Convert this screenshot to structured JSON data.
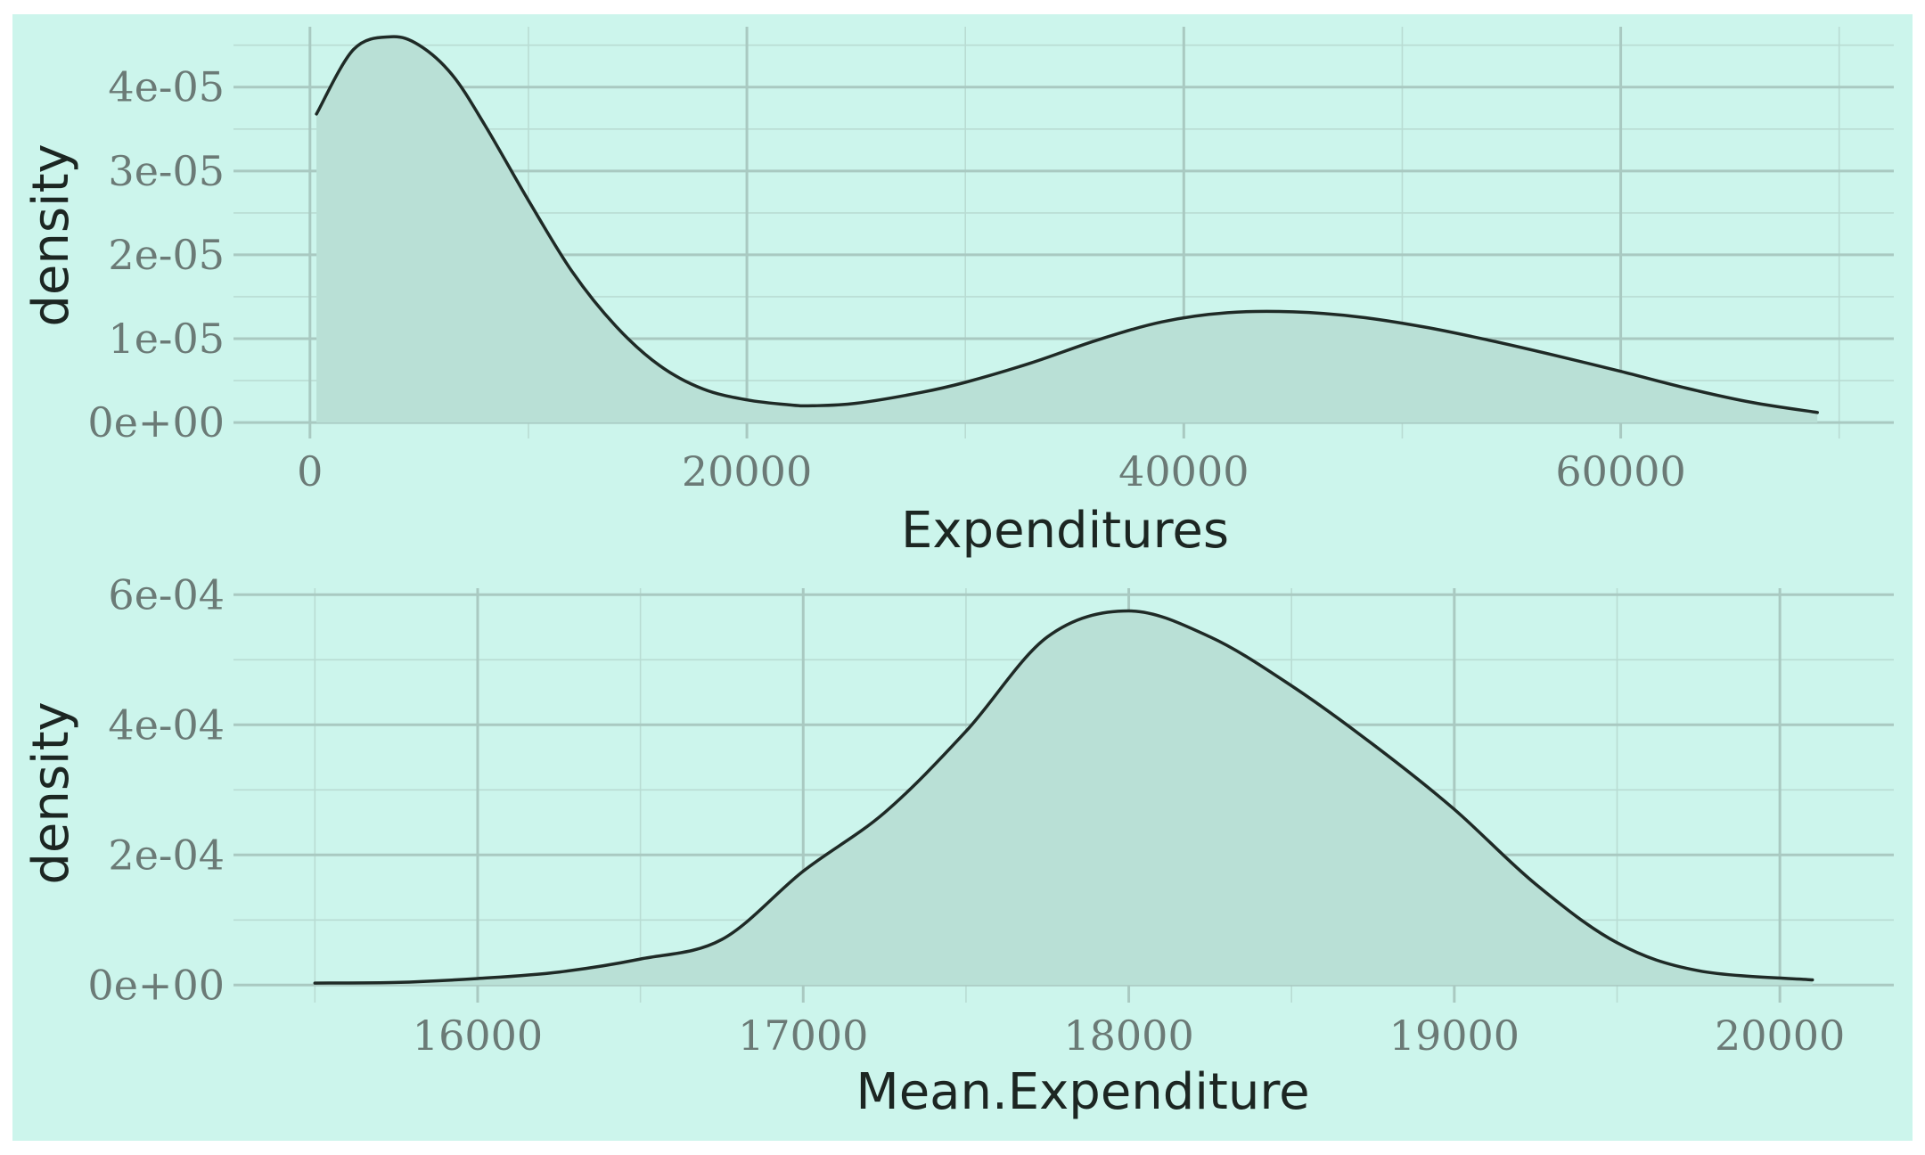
{
  "colors": {
    "panel_background": "#ccf5ec",
    "outer_background": "#ffffff",
    "fill": "#b9e0d6",
    "line": "#1f2a26"
  },
  "chart_data": [
    {
      "type": "area",
      "kind": "density",
      "xlabel": "Expenditures",
      "ylabel": "density",
      "xlim": [
        -3500,
        72500
      ],
      "ylim": [
        -1.9e-06,
        4.72e-05
      ],
      "x_ticks": [
        0,
        20000,
        40000,
        60000
      ],
      "x_tick_labels": [
        "0",
        "20000",
        "40000",
        "60000"
      ],
      "y_ticks": [
        0,
        1e-05,
        2e-05,
        3e-05,
        4e-05
      ],
      "y_tick_labels": [
        "0e+00",
        "1e-05",
        "2e-05",
        "3e-05",
        "4e-05"
      ],
      "grid": true,
      "series": [
        {
          "x": [
            300,
            2000,
            3700,
            5000,
            6500,
            8000,
            10000,
            12000,
            14000,
            16000,
            18000,
            20000,
            22000,
            23000,
            25000,
            28000,
            30000,
            33000,
            36000,
            39000,
            42000,
            45000,
            48000,
            51000,
            54000,
            57000,
            60000,
            63000,
            66000,
            69000
          ],
          "y": [
            3.68e-05,
            4.45e-05,
            4.6e-05,
            4.5e-05,
            4.15e-05,
            3.55e-05,
            2.65e-05,
            1.8e-05,
            1.15e-05,
            6.8e-06,
            4e-06,
            2.7e-06,
            2.1e-06,
            2e-06,
            2.3e-06,
            3.6e-06,
            4.8e-06,
            7.1e-06,
            9.8e-06,
            1.2e-05,
            1.31e-05,
            1.32e-05,
            1.26e-05,
            1.14e-05,
            9.8e-06,
            8e-06,
            6.1e-06,
            4.1e-06,
            2.4e-06,
            1.2e-06
          ]
        }
      ]
    },
    {
      "type": "area",
      "kind": "density",
      "xlabel": "Mean.Expenditure",
      "ylabel": "density",
      "xlim": [
        15250,
        20350
      ],
      "ylim": [
        -2.7e-05,
        0.00061
      ],
      "x_ticks": [
        16000,
        17000,
        18000,
        19000,
        20000
      ],
      "x_tick_labels": [
        "16000",
        "17000",
        "18000",
        "19000",
        "20000"
      ],
      "y_ticks": [
        0,
        0.0002,
        0.0004,
        0.0006
      ],
      "y_tick_labels": [
        "0e+00",
        "2e-04",
        "4e-04",
        "6e-04"
      ],
      "grid": true,
      "series": [
        {
          "x": [
            15500,
            15750,
            16000,
            16250,
            16500,
            16750,
            17000,
            17250,
            17500,
            17750,
            18000,
            18250,
            18500,
            18750,
            19000,
            19250,
            19500,
            19750,
            20100
          ],
          "y": [
            3e-06,
            4e-06,
            1e-05,
            2e-05,
            4e-05,
            7e-05,
            0.000175,
            0.000265,
            0.00039,
            0.000535,
            0.000575,
            0.000535,
            0.00046,
            0.00037,
            0.00027,
            0.000155,
            6.5e-05,
            2.2e-05,
            8e-06
          ]
        }
      ]
    }
  ]
}
